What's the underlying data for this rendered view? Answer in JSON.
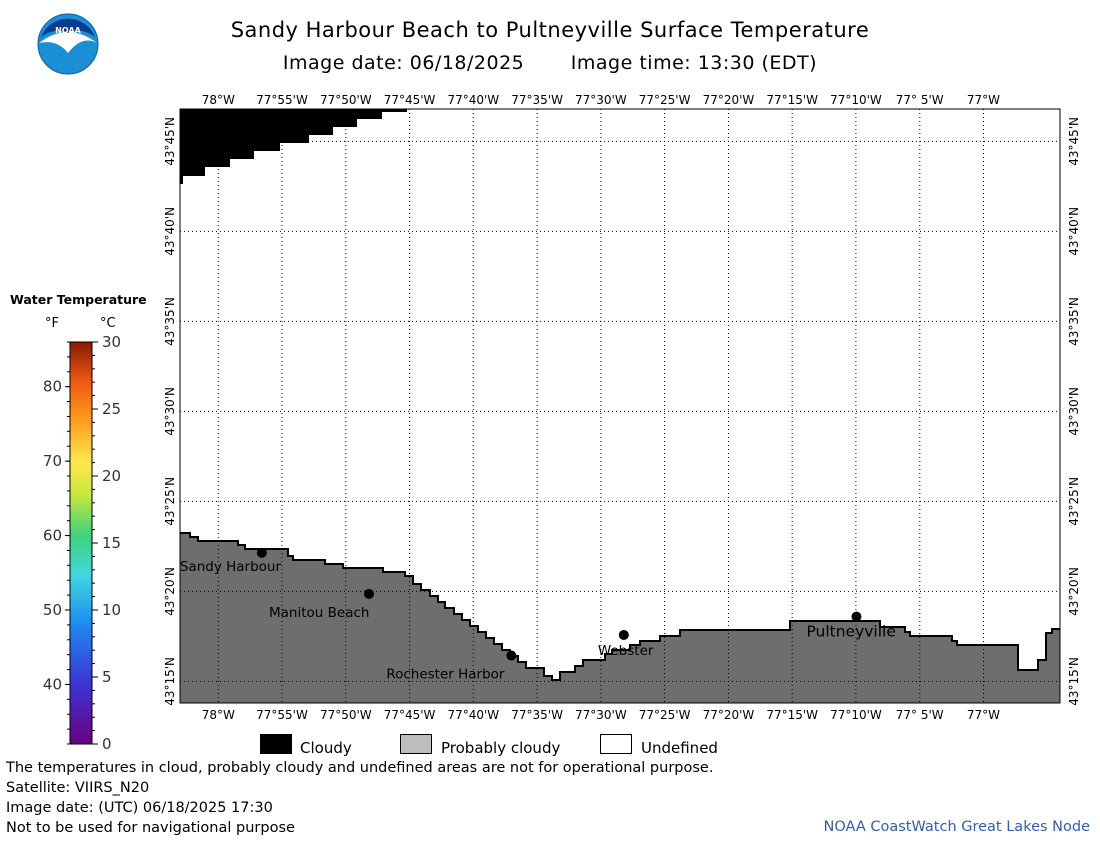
{
  "header": {
    "title": "Sandy Harbour Beach to Pultneyville Surface Temperature",
    "image_date": "Image date: 06/18/2025",
    "image_time": "Image time: 13:30 (EDT)",
    "logo_text": "NOAA"
  },
  "map": {
    "lon_labels": [
      "78°W",
      "77°55'W",
      "77°50'W",
      "77°45'W",
      "77°40'W",
      "77°35'W",
      "77°30'W",
      "77°25'W",
      "77°20'W",
      "77°15'W",
      "77°10'W",
      "77° 5'W",
      "77°W"
    ],
    "lat_labels": [
      "43°45'N",
      "43°40'N",
      "43°35'N",
      "43°30'N",
      "43°25'N",
      "43°20'N",
      "43°15'N"
    ],
    "places": [
      {
        "name": "Sandy Harbour",
        "lon": -77.943,
        "lat": 43.369
      },
      {
        "name": "Manitou Beach",
        "lon": -77.803,
        "lat": 43.331
      },
      {
        "name": "Rochester Harbor",
        "lon": -77.617,
        "lat": 43.274
      },
      {
        "name": "Webster",
        "lon": -77.47,
        "lat": 43.293
      },
      {
        "name": "Pultneyville",
        "lon": -77.166,
        "lat": 43.31
      }
    ],
    "colors": {
      "land": "#6e6e6e",
      "cloud": "#000000",
      "water": "#ffffff",
      "grid": "#000000"
    }
  },
  "legend": {
    "title": "Water Temperature",
    "unit_f": "°F",
    "unit_c": "°C",
    "f_ticks": [
      "80",
      "70",
      "60",
      "50",
      "40"
    ],
    "c_ticks": [
      "30",
      "25",
      "20",
      "15",
      "10",
      "5",
      "0"
    ],
    "f_values": [
      80,
      70,
      60,
      50,
      40
    ],
    "c_values": [
      30,
      25,
      20,
      15,
      10,
      5,
      0
    ],
    "c_range": [
      0,
      30
    ]
  },
  "key": [
    {
      "label": "Cloudy",
      "color": "#000000"
    },
    {
      "label": "Probably cloudy",
      "color": "#bdbdbd"
    },
    {
      "label": "Undefined",
      "color": "#ffffff"
    }
  ],
  "footer": {
    "note": "The temperatures in cloud, probably cloudy and undefined areas are not for operational purpose.",
    "satellite": "Satellite: VIIRS_N20",
    "utc_date": "Image date: (UTC) 06/18/2025  17:30",
    "disclaimer": "Not to be used for navigational purpose",
    "credit": "NOAA CoastWatch Great Lakes Node"
  }
}
